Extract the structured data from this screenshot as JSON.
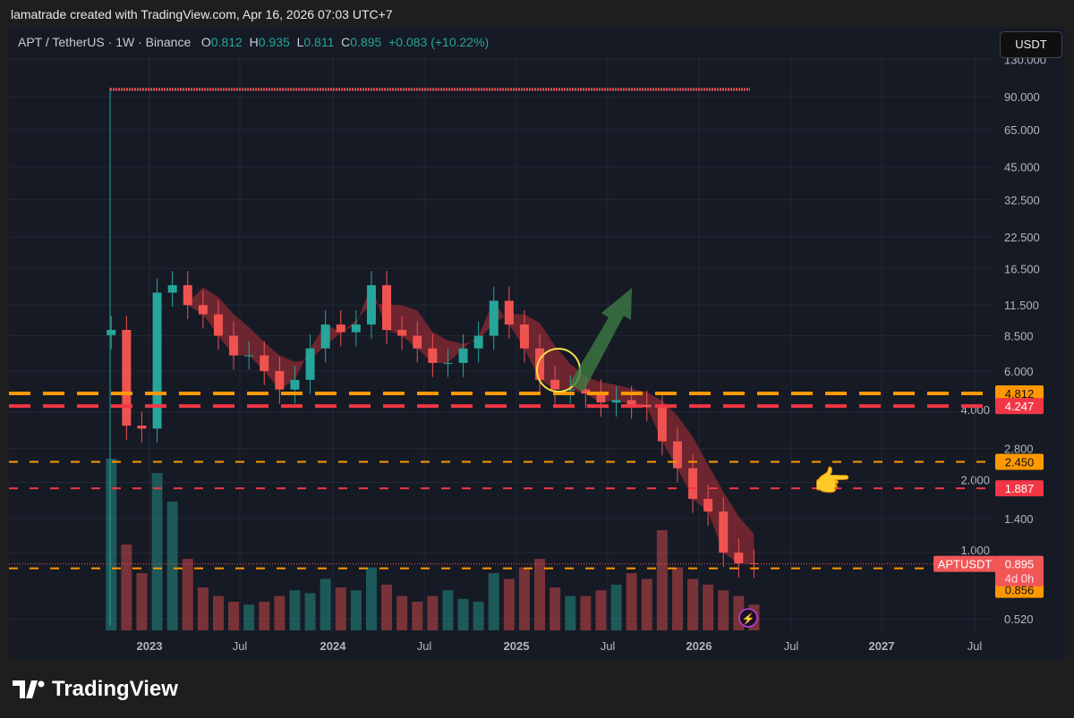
{
  "credit": "lamatrade created with TradingView.com, Apr 16, 2026 07:03 UTC+7",
  "legend": {
    "symbol": "APT / TetherUS · 1W · Binance",
    "o_label": "O",
    "o": "0.812",
    "h_label": "H",
    "h": "0.935",
    "l_label": "L",
    "l": "0.811",
    "c_label": "C",
    "c": "0.895",
    "change": "+0.083 (+10.22%)"
  },
  "currency_button": "USDT",
  "brand": "TradingView",
  "colors": {
    "up": "#26a69a",
    "down": "#ef5350",
    "orange": "#ff9800",
    "red": "#f23645",
    "bg": "#161a25"
  },
  "chart_data": {
    "type": "candlestick",
    "yscale": "log",
    "ylim": [
      0.52,
      130
    ],
    "y_ticks": [
      "130.000",
      "90.000",
      "65.000",
      "45.000",
      "32.500",
      "22.500",
      "16.500",
      "11.500",
      "8.500",
      "6.000",
      "4.000",
      "2.800",
      "2.000",
      "1.400",
      "1.000",
      "0.520"
    ],
    "x_ticks": [
      "2023",
      "Jul",
      "2024",
      "Jul",
      "2025",
      "Jul",
      "2026",
      "Jul",
      "2027",
      "Jul"
    ],
    "months": [
      "2022-10",
      "2022-11",
      "2022-12",
      "2023-01",
      "2023-02",
      "2023-03",
      "2023-04",
      "2023-05",
      "2023-06",
      "2023-07",
      "2023-08",
      "2023-09",
      "2023-10",
      "2023-11",
      "2023-12",
      "2024-01",
      "2024-02",
      "2024-03",
      "2024-04",
      "2024-05",
      "2024-06",
      "2024-07",
      "2024-08",
      "2024-09",
      "2024-10",
      "2024-11",
      "2024-12",
      "2025-01",
      "2025-02",
      "2025-03",
      "2025-04",
      "2025-05",
      "2025-06",
      "2025-07",
      "2025-08",
      "2025-09",
      "2025-10",
      "2025-11",
      "2025-12",
      "2026-01",
      "2026-02",
      "2026-03",
      "2026-04"
    ],
    "close": [
      9,
      3.5,
      3.4,
      13,
      14,
      11.5,
      10.5,
      8.5,
      7,
      7,
      6,
      5,
      5.5,
      7.5,
      9.5,
      8.8,
      9.5,
      14,
      9,
      8.5,
      7.5,
      6.5,
      6.5,
      7.5,
      8.5,
      12,
      9.5,
      7.5,
      5.5,
      5,
      5,
      4.8,
      4.4,
      4.5,
      4.3,
      4.2,
      3,
      2.3,
      1.7,
      1.5,
      1.0,
      0.9,
      0.895
    ],
    "volume": [
      60,
      30,
      20,
      55,
      45,
      25,
      15,
      12,
      10,
      9,
      10,
      12,
      14,
      13,
      18,
      15,
      14,
      22,
      16,
      12,
      10,
      12,
      14,
      11,
      10,
      20,
      18,
      22,
      25,
      15,
      12,
      12,
      14,
      16,
      20,
      18,
      35,
      22,
      18,
      16,
      14,
      12,
      9
    ],
    "levels": [
      {
        "value": "4.812",
        "color": "orange",
        "style": "thick-dash"
      },
      {
        "value": "4.247",
        "color": "red",
        "style": "thick-dash"
      },
      {
        "value": "2.450",
        "color": "orange",
        "style": "dash"
      },
      {
        "value": "1.887",
        "color": "red",
        "style": "dash"
      },
      {
        "value": "0.856",
        "color": "orange",
        "style": "dash"
      }
    ],
    "price_label": {
      "symbol": "APTUSDT",
      "price": "0.895",
      "countdown": "4d 0h"
    }
  }
}
